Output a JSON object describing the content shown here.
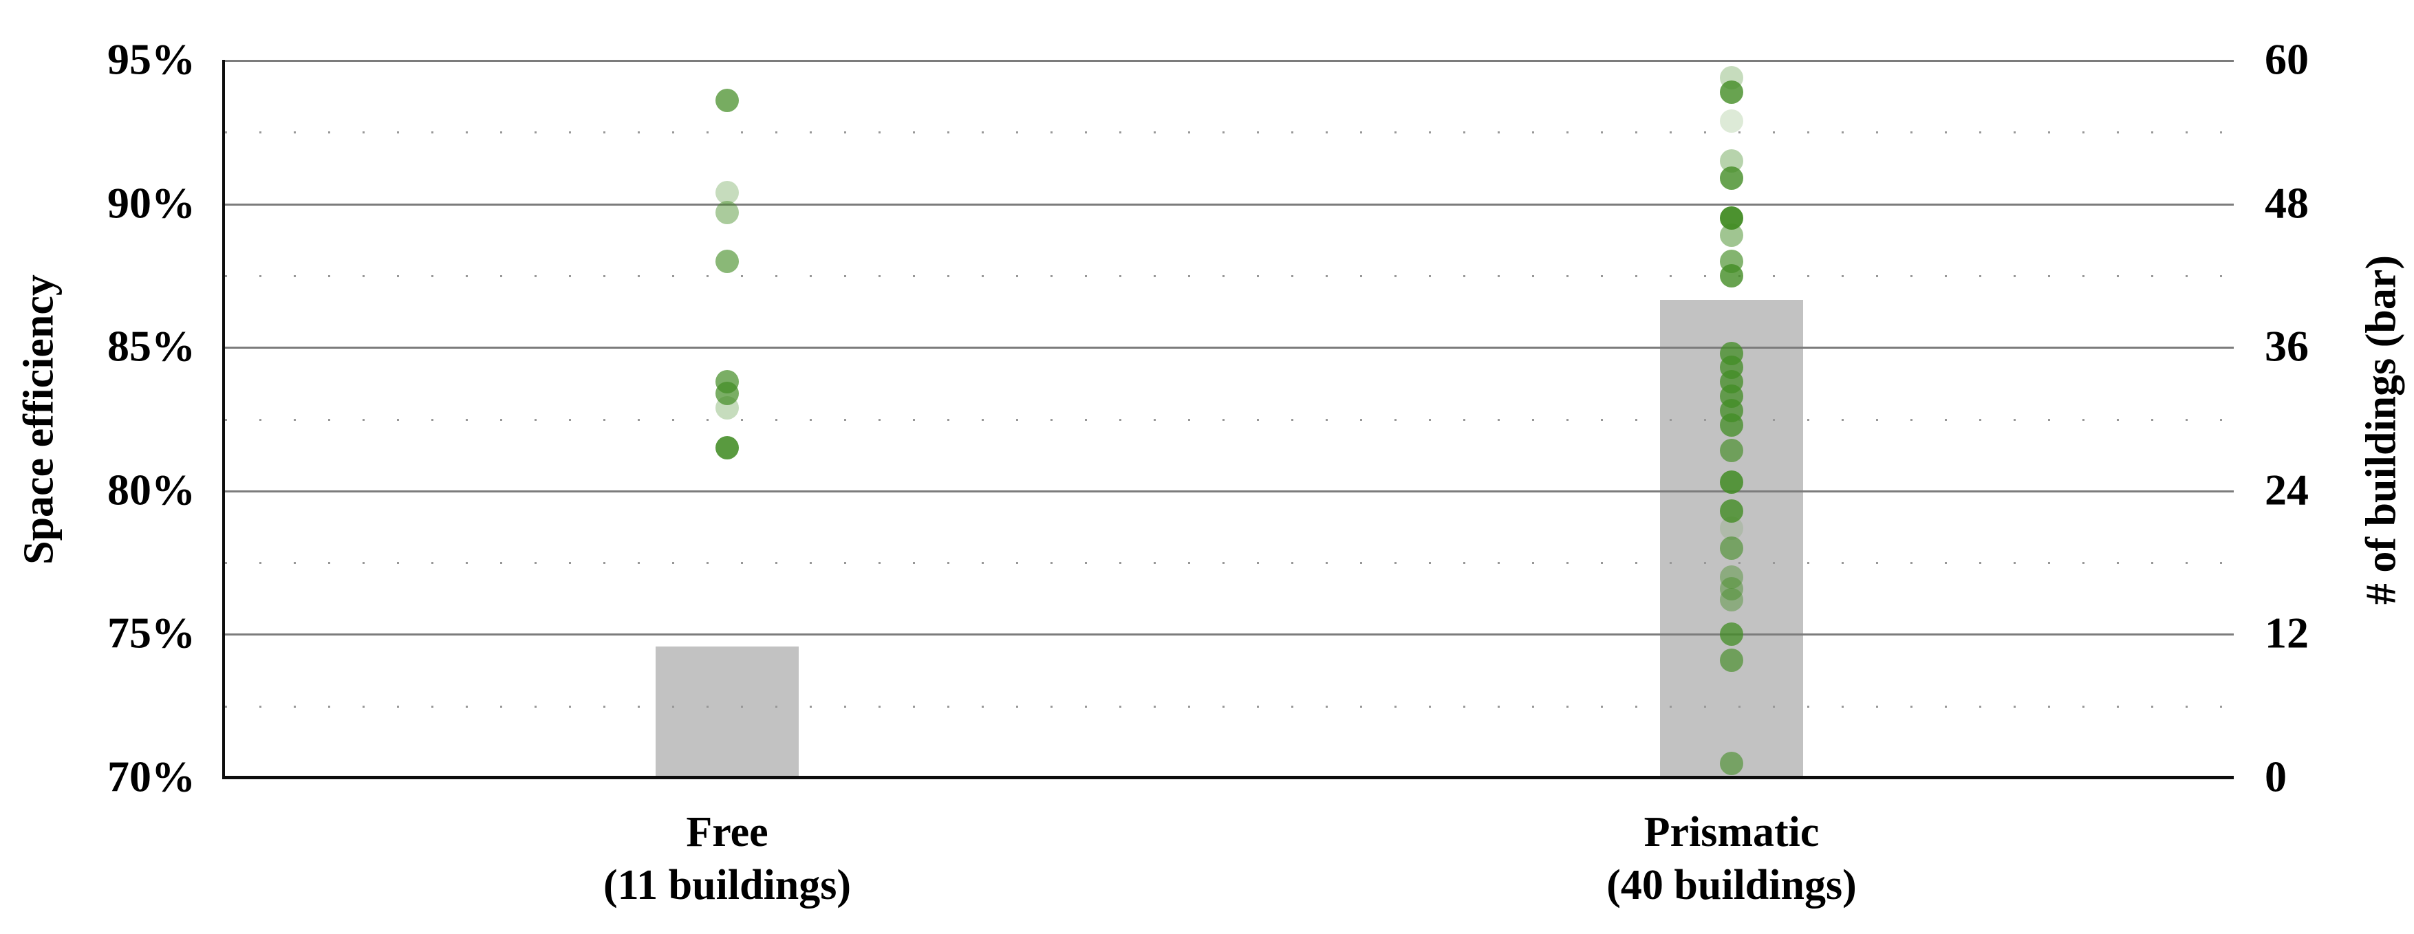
{
  "chart_data": {
    "type": "bar+scatter",
    "description": "Dual-axis strip/dot plot of space efficiency per building with gray bars giving building counts per category",
    "categories": [
      {
        "label": "Free",
        "sublabel": "(11 buildings)",
        "building_count": 11,
        "efficiency_points_pct": [
          {
            "v": 93.6,
            "a": 0.72
          },
          {
            "v": 90.4,
            "a": 0.3
          },
          {
            "v": 89.7,
            "a": 0.45
          },
          {
            "v": 88.0,
            "a": 0.62
          },
          {
            "v": 83.8,
            "a": 0.7
          },
          {
            "v": 83.4,
            "a": 0.7
          },
          {
            "v": 82.9,
            "a": 0.3
          },
          {
            "v": 81.5,
            "a": 0.88
          }
        ]
      },
      {
        "label": "Prismatic",
        "sublabel": "(40 buildings)",
        "building_count": 40,
        "efficiency_points_pct": [
          {
            "v": 94.4,
            "a": 0.3
          },
          {
            "v": 93.9,
            "a": 0.8
          },
          {
            "v": 92.9,
            "a": 0.18
          },
          {
            "v": 91.5,
            "a": 0.38
          },
          {
            "v": 90.9,
            "a": 0.8
          },
          {
            "v": 89.5,
            "a": 0.95
          },
          {
            "v": 88.9,
            "a": 0.5
          },
          {
            "v": 88.0,
            "a": 0.65
          },
          {
            "v": 87.5,
            "a": 0.8
          },
          {
            "v": 84.8,
            "a": 0.75
          },
          {
            "v": 84.3,
            "a": 0.75
          },
          {
            "v": 83.8,
            "a": 0.75
          },
          {
            "v": 83.3,
            "a": 0.75
          },
          {
            "v": 82.8,
            "a": 0.75
          },
          {
            "v": 82.3,
            "a": 0.75
          },
          {
            "v": 81.4,
            "a": 0.65
          },
          {
            "v": 80.3,
            "a": 0.85
          },
          {
            "v": 79.3,
            "a": 0.8
          },
          {
            "v": 78.7,
            "a": 0.15
          },
          {
            "v": 78.0,
            "a": 0.6
          },
          {
            "v": 77.0,
            "a": 0.42
          },
          {
            "v": 76.6,
            "a": 0.45
          },
          {
            "v": 76.2,
            "a": 0.42
          },
          {
            "v": 75.0,
            "a": 0.75
          },
          {
            "v": 74.1,
            "a": 0.65
          },
          {
            "v": 70.5,
            "a": 0.6
          }
        ]
      }
    ],
    "bar_series": {
      "name": "# of buildings",
      "values": [
        11,
        40
      ]
    },
    "y_left": {
      "label": "Space efficiency",
      "min": 70,
      "max": 95,
      "step": 5,
      "ticks": [
        "95%",
        "90%",
        "85%",
        "80%",
        "75%",
        "70%"
      ]
    },
    "y_right": {
      "label": "# of buildings (bar)",
      "min": 0,
      "max": 60,
      "step": 12,
      "ticks": [
        "60",
        "48",
        "36",
        "24",
        "12",
        "0"
      ]
    },
    "grid": {
      "solid_on": true,
      "dotted_midlines_on": true
    },
    "colors": {
      "dot_base": "#428c24",
      "bar_fill": "#c2c2c2",
      "grid_solid": "#7c7c7c",
      "grid_dotted": "#989898",
      "axis_line": "#0d0d0d",
      "text": "#000000"
    }
  }
}
